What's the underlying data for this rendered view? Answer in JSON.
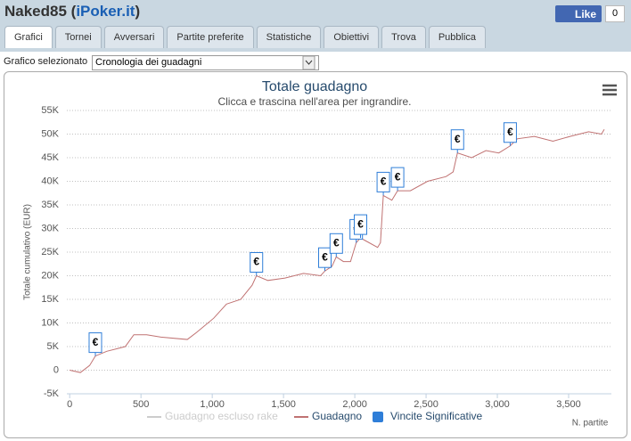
{
  "header": {
    "title_parts": [
      "Naked85 (",
      "iPoker.it",
      ")"
    ],
    "like": "Like",
    "like_count": "0"
  },
  "tabs": [
    "Grafici",
    "Tornei",
    "Avversari",
    "Partite preferite",
    "Statistiche",
    "Obiettivi",
    "Trova",
    "Pubblica"
  ],
  "selector": {
    "label": "Grafico selezionato",
    "value": "Cronologia dei guadagni"
  },
  "chart_data": {
    "type": "line",
    "title": "Totale guadagno",
    "subtitle": "Clicca e trascina nell'area per ingrandire.",
    "x_label": "N. partite",
    "y_label": "Totale cumulativo (EUR)",
    "xlim": [
      -20,
      3800
    ],
    "xticks": [
      0,
      {
        "value": 500,
        "label": "500"
      },
      {
        "value": 1000,
        "label": "1,000"
      },
      {
        "value": 1500,
        "label": "1,500"
      },
      {
        "value": 2000,
        "label": "2,000"
      },
      {
        "value": 2500,
        "label": "2,500"
      },
      {
        "value": 3000,
        "label": "3,000"
      },
      {
        "value": 3500,
        "label": "3,500"
      }
    ],
    "ylim": [
      -5000,
      55000
    ],
    "yticks": [
      {
        "value": -5000,
        "label": "-5K"
      },
      0,
      {
        "value": 5000,
        "label": "5K"
      },
      {
        "value": 10000,
        "label": "10K"
      },
      {
        "value": 15000,
        "label": "15K"
      },
      {
        "value": 20000,
        "label": "20K"
      },
      {
        "value": 25000,
        "label": "25K"
      },
      {
        "value": 30000,
        "label": "30K"
      },
      {
        "value": 35000,
        "label": "35K"
      },
      {
        "value": 40000,
        "label": "40K"
      },
      {
        "value": 45000,
        "label": "45K"
      },
      {
        "value": 50000,
        "label": "50K"
      },
      {
        "value": 55000,
        "label": "55K"
      }
    ],
    "grid": true,
    "flag_text": "€",
    "series": [
      {
        "name": "Guadagno escluso rake",
        "color": "#cccccc",
        "visible": false
      },
      {
        "name": "Guadagno",
        "color": "#c07272",
        "x": [
          0,
          75,
          140,
          180,
          260,
          390,
          450,
          540,
          640,
          825,
          890,
          1010,
          1100,
          1200,
          1280,
          1310,
          1390,
          1510,
          1640,
          1760,
          1790,
          1840,
          1870,
          1920,
          1970,
          2010,
          2040,
          2070,
          2160,
          2180,
          2200,
          2260,
          2300,
          2390,
          2510,
          2640,
          2690,
          2720,
          2820,
          2920,
          3010,
          3090,
          3140,
          3260,
          3390,
          3510,
          3640,
          3730,
          3750
        ],
        "values": [
          0,
          -500,
          1000,
          3000,
          4000,
          5000,
          7500,
          7500,
          7000,
          6500,
          8000,
          11000,
          14000,
          15000,
          18000,
          20000,
          19000,
          19500,
          20500,
          20000,
          21000,
          22000,
          24000,
          23000,
          23000,
          27000,
          28000,
          27500,
          26000,
          27000,
          37000,
          36000,
          38000,
          38000,
          40000,
          41000,
          42000,
          46000,
          45000,
          46500,
          46000,
          47500,
          49000,
          49500,
          48500,
          49500,
          50500,
          50000,
          51000
        ]
      },
      {
        "name": "Vincite Significative",
        "color": "#2f7ed8",
        "x": [
          180,
          1310,
          1790,
          1870,
          2010,
          2040,
          2200,
          2300,
          2720,
          3090
        ],
        "values": [
          3000,
          20000,
          21000,
          24000,
          27000,
          28000,
          37000,
          38000,
          46000,
          47500
        ]
      }
    ]
  }
}
